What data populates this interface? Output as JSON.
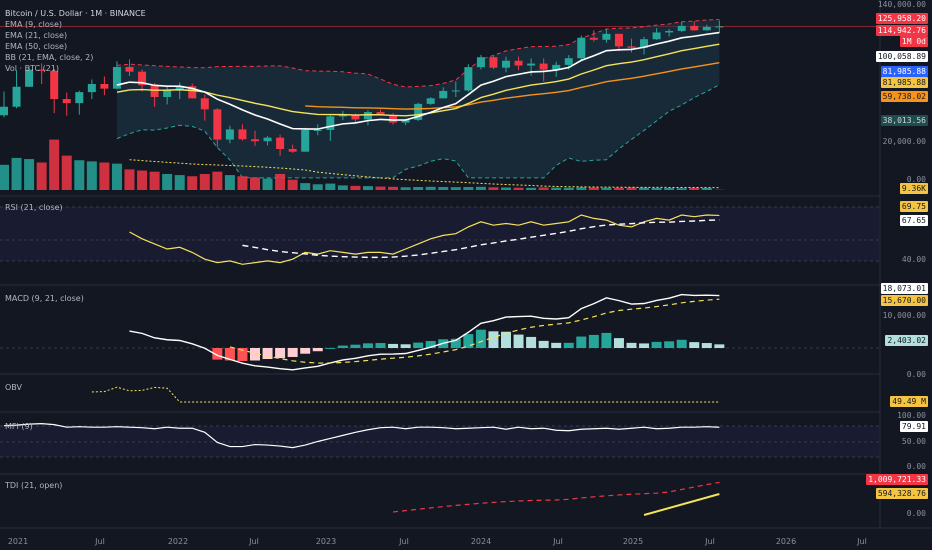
{
  "header": {
    "title": "Bitcoin / U.S. Dollar · 1M · BINANCE",
    "indicators": [
      "EMA (9, close)",
      "EMA (21, close)",
      "EMA (50, close)",
      "BB (21, EMA, close, 2)",
      "Vol · BTC (21)"
    ]
  },
  "panes": {
    "rsi_label": "RSI (21, close)",
    "macd_label": "MACD (9, 21, close)",
    "obv_label": "OBV",
    "mfi_label": "MFI (9)",
    "tdi_label": "TDI (21, open)"
  },
  "price_axis": {
    "ticks": [
      "140,000.00",
      "20,000.00",
      "0.00"
    ],
    "badges": [
      {
        "text": "125,958.20",
        "bg": "#f23645",
        "fg": "#ffffff"
      },
      {
        "text": "114,942.76",
        "bg": "#f23645",
        "fg": "#ffffff"
      },
      {
        "text": "1M 0d",
        "bg": "#f23645",
        "fg": "#ffffff"
      },
      {
        "text": "100,058.89",
        "bg": "#ffffff",
        "fg": "#131722"
      },
      {
        "text": "81,985.88",
        "bg": "#2962ff",
        "fg": "#ffffff"
      },
      {
        "text": "81,985.88",
        "bg": "#f5c542",
        "fg": "#131722"
      },
      {
        "text": "59,738.02",
        "bg": "#f7931a",
        "fg": "#131722"
      },
      {
        "text": "38,013.56",
        "bg": "#1f4d4d",
        "fg": "#d1d4dc"
      },
      {
        "text": "9.36K",
        "bg": "#f5c542",
        "fg": "#131722"
      }
    ]
  },
  "rsi_axis": {
    "ticks": [
      "40.00"
    ],
    "badges": [
      {
        "text": "69.75",
        "bg": "#f5c542",
        "fg": "#131722"
      },
      {
        "text": "67.65",
        "bg": "#ffffff",
        "fg": "#131722"
      }
    ]
  },
  "macd_axis": {
    "ticks": [
      "10,000.00",
      "0.00"
    ],
    "badges": [
      {
        "text": "18,073.01",
        "bg": "#ffffff",
        "fg": "#131722"
      },
      {
        "text": "15,670.00",
        "bg": "#f5c542",
        "fg": "#131722"
      },
      {
        "text": "2,403.02",
        "bg": "#b2dfdb",
        "fg": "#131722"
      }
    ]
  },
  "obv_axis": {
    "badges": [
      {
        "text": "49.49 M",
        "bg": "#f5c542",
        "fg": "#131722"
      }
    ]
  },
  "mfi_axis": {
    "ticks": [
      "100.00",
      "50.00",
      "0.00"
    ],
    "badges": [
      {
        "text": "79.91",
        "bg": "#ffffff",
        "fg": "#131722"
      }
    ]
  },
  "tdi_axis": {
    "ticks": [
      "0.00"
    ],
    "badges": [
      {
        "text": "1,009,721.33",
        "bg": "#f23645",
        "fg": "#ffffff"
      },
      {
        "text": "594,328.76",
        "bg": "#f5c542",
        "fg": "#131722"
      }
    ]
  },
  "time_axis": [
    "2021",
    "Jul",
    "2022",
    "Jul",
    "2023",
    "Jul",
    "2024",
    "Jul",
    "2025",
    "Jul",
    "2026",
    "Jul"
  ],
  "colors": {
    "up": "#26a69a",
    "down": "#f23645",
    "ema9": "#ffffff",
    "ema21": "#f5e35a",
    "ema50": "#f7931a",
    "bb": "#1e3a4a",
    "bb_upper": "#f23645",
    "bb_lower": "#26a69a"
  },
  "chart_data": {
    "type": "candlestick",
    "title": "Bitcoin / U.S. Dollar · 1M · BINANCE",
    "x_labels": [
      "2021",
      "Jul",
      "2022",
      "Jul",
      "2023",
      "Jul",
      "2024",
      "Jul",
      "2025",
      "Jul",
      "2026",
      "Jul"
    ],
    "x_start": "2021-01",
    "ohlc": [
      [
        29000,
        41900,
        28100,
        33100
      ],
      [
        33100,
        58300,
        32300,
        45100
      ],
      [
        45100,
        61800,
        45000,
        58800
      ],
      [
        58800,
        64800,
        47000,
        57700
      ],
      [
        57700,
        59500,
        30000,
        37300
      ],
      [
        37300,
        41300,
        28800,
        35000
      ],
      [
        35000,
        42400,
        29300,
        41500
      ],
      [
        41500,
        50500,
        37300,
        47100
      ],
      [
        47100,
        52900,
        39600,
        43800
      ],
      [
        43800,
        67000,
        43300,
        61300
      ],
      [
        61300,
        69000,
        53300,
        57000
      ],
      [
        57000,
        59000,
        42000,
        46200
      ],
      [
        46200,
        47900,
        33000,
        38500
      ],
      [
        38500,
        45800,
        34300,
        43200
      ],
      [
        43200,
        48200,
        37200,
        45500
      ],
      [
        45500,
        47400,
        37700,
        37700
      ],
      [
        37700,
        40000,
        26700,
        31800
      ],
      [
        31800,
        32400,
        17600,
        19900
      ],
      [
        19900,
        24700,
        18800,
        23300
      ],
      [
        23300,
        25200,
        19600,
        20000
      ],
      [
        20000,
        22800,
        18100,
        19400
      ],
      [
        19400,
        21000,
        18200,
        20500
      ],
      [
        20500,
        21500,
        15500,
        17200
      ],
      [
        17200,
        18400,
        16200,
        16500
      ],
      [
        16500,
        23900,
        16500,
        23100
      ],
      [
        23100,
        25200,
        21300,
        23100
      ],
      [
        23100,
        29200,
        19500,
        28500
      ],
      [
        28500,
        31000,
        26900,
        29200
      ],
      [
        29200,
        29800,
        25800,
        27200
      ],
      [
        27200,
        31400,
        24800,
        30500
      ],
      [
        30500,
        31800,
        28900,
        29200
      ],
      [
        29200,
        30000,
        25100,
        25900
      ],
      [
        25900,
        27500,
        24900,
        27000
      ],
      [
        27000,
        35200,
        26500,
        34600
      ],
      [
        34600,
        38400,
        34100,
        37700
      ],
      [
        37700,
        44700,
        37600,
        42300
      ],
      [
        42300,
        48900,
        38500,
        42600
      ],
      [
        42600,
        64000,
        41900,
        61100
      ],
      [
        61100,
        73800,
        59000,
        71300
      ],
      [
        71300,
        72700,
        59200,
        60600
      ],
      [
        60600,
        71900,
        56500,
        67500
      ],
      [
        67500,
        72000,
        58400,
        62700
      ],
      [
        62700,
        70000,
        53500,
        64600
      ],
      [
        64600,
        70000,
        49000,
        58900
      ],
      [
        58900,
        66500,
        52600,
        63300
      ],
      [
        63300,
        73600,
        58900,
        70200
      ],
      [
        70200,
        99800,
        66800,
        96400
      ],
      [
        96400,
        108300,
        90700,
        93400
      ],
      [
        93400,
        109600,
        89200,
        102400
      ],
      [
        102400,
        102500,
        78200,
        84300
      ],
      [
        84300,
        95000,
        76600,
        82500
      ],
      [
        82500,
        97900,
        74400,
        94200
      ],
      [
        94200,
        111900,
        93300,
        104600
      ],
      [
        104600,
        110600,
        98200,
        107100
      ],
      [
        107100,
        123200,
        105300,
        115800
      ],
      [
        115800,
        124400,
        107300,
        108200
      ],
      [
        108200,
        117900,
        107300,
        114000
      ],
      [
        114000,
        126000,
        104000,
        114942.76
      ]
    ],
    "volume_k": [
      1100,
      1400,
      1350,
      1200,
      2200,
      1500,
      1300,
      1250,
      1200,
      1150,
      900,
      850,
      800,
      700,
      650,
      600,
      700,
      800,
      650,
      600,
      550,
      500,
      700,
      450,
      300,
      250,
      280,
      200,
      180,
      170,
      150,
      140,
      120,
      130,
      140,
      130,
      125,
      130,
      140,
      120,
      110,
      100,
      95,
      110,
      105,
      100,
      120,
      110,
      100,
      95,
      110,
      100,
      90,
      85,
      80,
      95,
      90,
      9.36
    ],
    "ema9_last": 100058.89,
    "ema21_last": 81985.88,
    "ema50_last": 59738.02,
    "bb_upper_last": 125958.2,
    "bb_lower_last": 38013.56,
    "rsi": [
      75,
      72,
      65,
      62,
      58,
      60,
      63,
      58,
      55,
      58,
      60,
      56,
      53,
      50,
      51,
      48,
      44,
      42,
      43,
      41,
      42,
      43,
      42,
      44,
      48,
      47,
      49,
      48,
      47,
      48,
      48,
      47,
      50,
      53,
      56,
      58,
      59,
      63,
      66,
      64,
      65,
      64,
      66,
      64,
      65,
      66,
      70,
      68,
      67,
      64,
      63,
      66,
      68,
      67,
      70,
      69,
      70,
      69.75
    ],
    "rsi_ma_last": 67.65,
    "macd_last": 18073.01,
    "macd_signal_last": 15670.0,
    "macd_hist_last": 2403.02,
    "obv_last_m": 49.49,
    "mfi_last": 79.91,
    "tdi_red_last": 1009721.33,
    "tdi_yellow_last": 594328.76
  }
}
